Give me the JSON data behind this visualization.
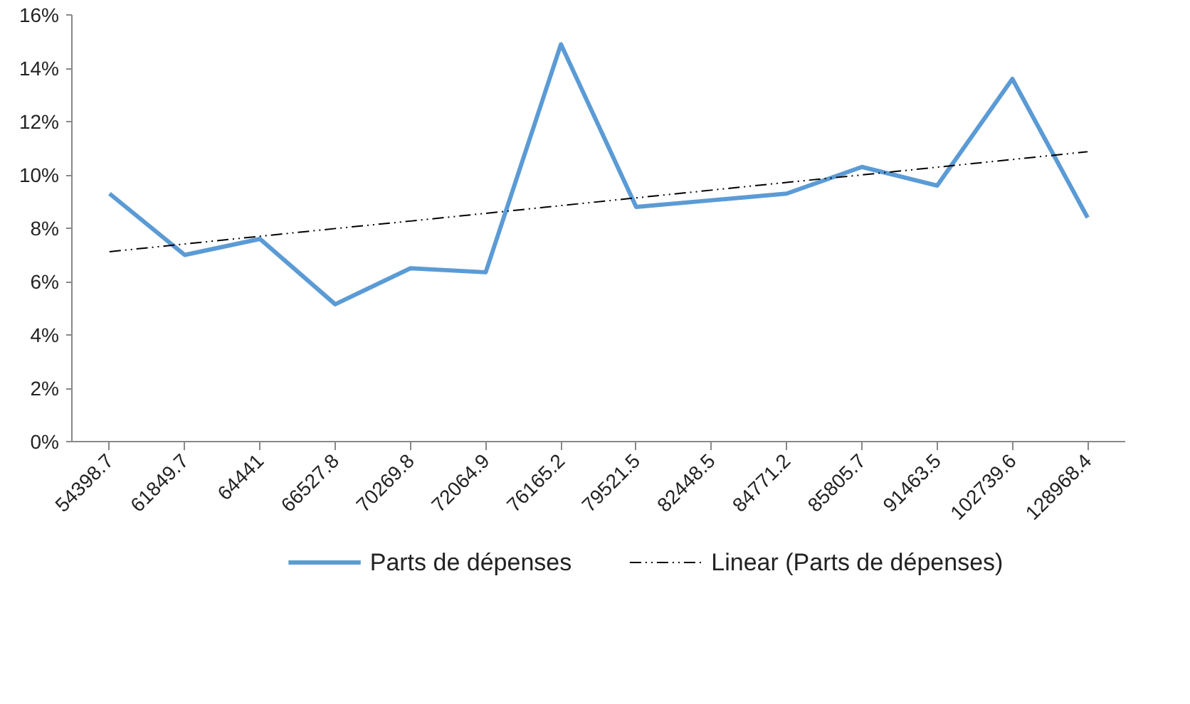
{
  "chart_data": {
    "type": "line",
    "categories": [
      "54398.7",
      "61849.7",
      "64441",
      "66527.8",
      "70269.8",
      "72064.9",
      "76165.2",
      "79521.5",
      "82448.5",
      "84771.2",
      "85805.7",
      "91463.5",
      "102739.6",
      "128968.4"
    ],
    "series": [
      {
        "name": "Parts de dépenses",
        "color": "#5b9bd5",
        "line_style": "solid",
        "values": [
          9.3,
          7.0,
          7.6,
          5.15,
          6.5,
          6.35,
          14.9,
          8.8,
          9.05,
          9.3,
          10.3,
          9.6,
          13.6,
          8.4
        ]
      },
      {
        "name": "Linear (Parts de dépenses)",
        "color": "#000000",
        "line_style": "dashdot",
        "values": [
          7.12,
          7.41,
          7.7,
          7.99,
          8.27,
          8.56,
          8.85,
          9.14,
          9.43,
          9.72,
          10.0,
          10.29,
          10.58,
          10.87
        ]
      }
    ],
    "ylim": [
      0,
      16
    ],
    "yticks": [
      {
        "value": 0,
        "label": "0%"
      },
      {
        "value": 2,
        "label": "2%"
      },
      {
        "value": 4,
        "label": "4%"
      },
      {
        "value": 6,
        "label": "6%"
      },
      {
        "value": 8,
        "label": "8%"
      },
      {
        "value": 10,
        "label": "10%"
      },
      {
        "value": 12,
        "label": "12%"
      },
      {
        "value": 14,
        "label": "14%"
      },
      {
        "value": 16,
        "label": "16%"
      }
    ],
    "grid": false,
    "legend": "bottom",
    "marker": "none"
  }
}
